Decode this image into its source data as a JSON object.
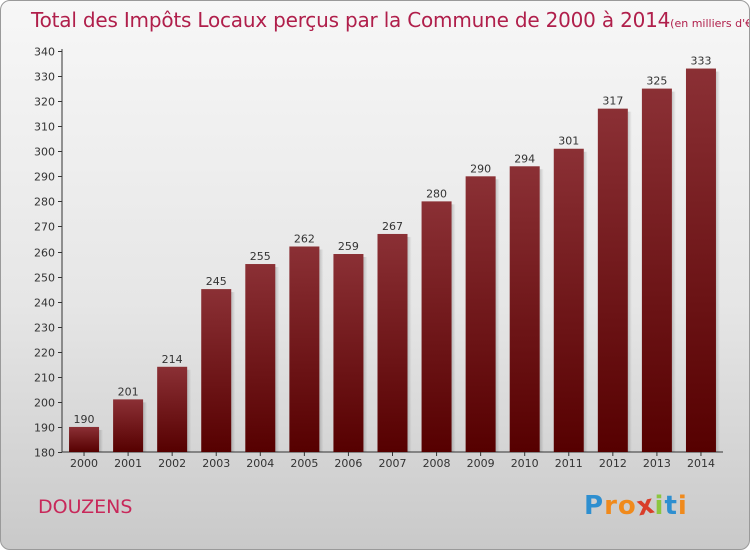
{
  "chart_data": {
    "type": "bar",
    "title": "Total des Impôts Locaux perçus par la Commune de 2000 à 2014",
    "subtitle": "(en milliers d'€)",
    "categories": [
      "2000",
      "2001",
      "2002",
      "2003",
      "2004",
      "2005",
      "2006",
      "2007",
      "2008",
      "2009",
      "2010",
      "2011",
      "2012",
      "2013",
      "2014"
    ],
    "values": [
      190,
      201,
      214,
      245,
      255,
      262,
      259,
      267,
      280,
      290,
      294,
      301,
      317,
      325,
      333
    ],
    "ylim": [
      180,
      340
    ],
    "yticks": [
      180,
      190,
      200,
      210,
      220,
      230,
      240,
      250,
      260,
      270,
      280,
      290,
      300,
      310,
      320,
      330,
      340
    ],
    "xlabel": "",
    "ylabel": "",
    "grid": false,
    "bar_color_top": "#8b3035",
    "bar_color_bottom": "#560000"
  },
  "footer": {
    "commune": "DOUZENS",
    "logo_letters": [
      "P",
      "r",
      "o",
      "x",
      "i",
      "t",
      "i"
    ],
    "logo_colors": [
      "#2e8fd0",
      "#f08a1c",
      "#f08a1c",
      "#d93d2a",
      "#8cc63f",
      "#2e8fd0",
      "#f08a1c"
    ]
  },
  "colors": {
    "title": "#b01f4b",
    "commune": "#c8285a"
  }
}
